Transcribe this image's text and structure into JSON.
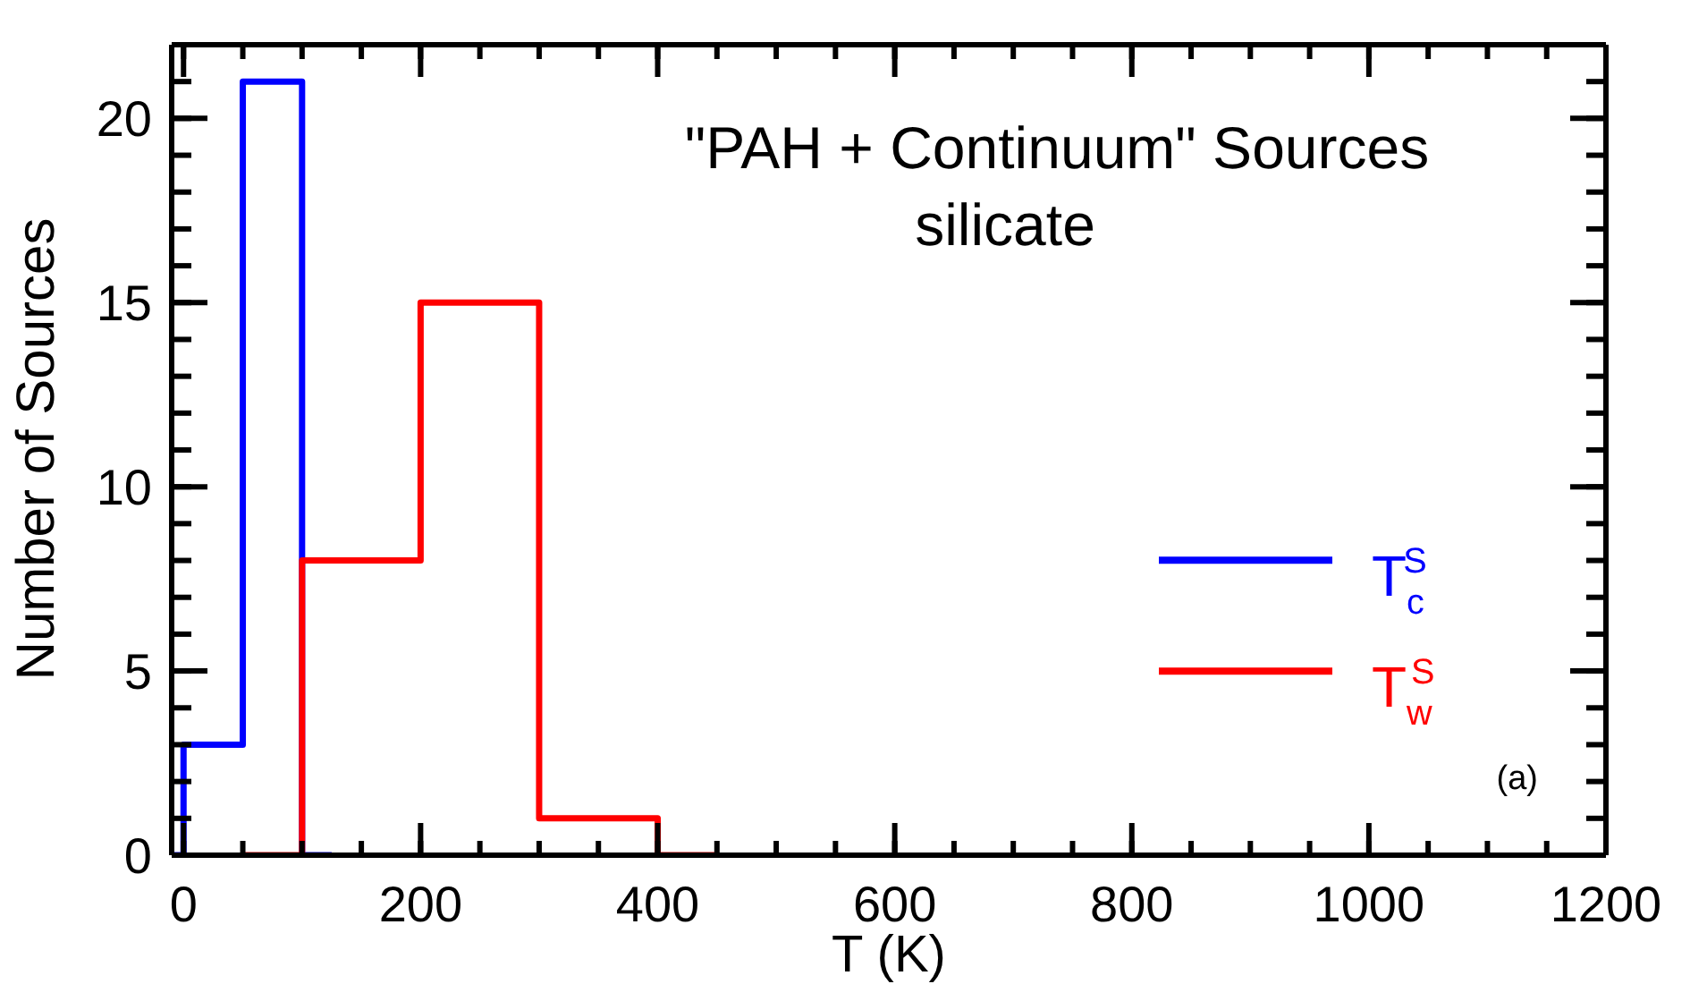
{
  "chart_data": {
    "type": "step",
    "title": "\"PAH + Continuum\" Sources",
    "subtitle": "silicate",
    "xlabel": "T (K)",
    "ylabel": "Number of Sources",
    "annotations": [
      "(a)"
    ],
    "series": [
      {
        "name": "T$_{c}$$^{S}$",
        "color": "#0000ff",
        "x": [
          -10,
          0,
          50,
          100,
          125
        ],
        "values": [
          0,
          3,
          21,
          0,
          0
        ]
      },
      {
        "name": "T$_{w}$$^{S}$",
        "color": "#ff0000",
        "x": [
          50,
          100,
          200,
          300,
          400,
          450
        ],
        "values": [
          0,
          8,
          15,
          1,
          0,
          0
        ]
      }
    ],
    "xlim": [
      -10,
      1200
    ],
    "xticks": [
      0,
      {
        "value": 50,
        "label": null
      },
      {
        "value": 100,
        "label": null
      },
      {
        "value": 150,
        "label": null
      },
      200,
      {
        "value": 250,
        "label": null
      },
      {
        "value": 300,
        "label": null
      },
      {
        "value": 350,
        "label": null
      },
      400,
      {
        "value": 450,
        "label": null
      },
      {
        "value": 500,
        "label": null
      },
      {
        "value": 550,
        "label": null
      },
      600,
      {
        "value": 650,
        "label": null
      },
      {
        "value": 700,
        "label": null
      },
      {
        "value": 750,
        "label": null
      },
      800,
      {
        "value": 850,
        "label": null
      },
      {
        "value": 900,
        "label": null
      },
      {
        "value": 950,
        "label": null
      },
      1000,
      {
        "value": 1050,
        "label": null
      },
      {
        "value": 1100,
        "label": null
      },
      {
        "value": 1150,
        "label": null
      },
      1200
    ],
    "ylim": [
      0,
      22
    ],
    "yticks": [
      0,
      {
        "value": 1,
        "label": null
      },
      {
        "value": 2,
        "label": null
      },
      {
        "value": 3,
        "label": null
      },
      {
        "value": 4,
        "label": null
      },
      5,
      {
        "value": 6,
        "label": null
      },
      {
        "value": 7,
        "label": null
      },
      {
        "value": 8,
        "label": null
      },
      {
        "value": 9,
        "label": null
      },
      10,
      {
        "value": 11,
        "label": null
      },
      {
        "value": 12,
        "label": null
      },
      {
        "value": 13,
        "label": null
      },
      {
        "value": 14,
        "label": null
      },
      15,
      {
        "value": 16,
        "label": null
      },
      {
        "value": 17,
        "label": null
      },
      {
        "value": 18,
        "label": null
      },
      {
        "value": 19,
        "label": null
      },
      20,
      {
        "value": 21,
        "label": null
      }
    ],
    "legend": "right"
  }
}
